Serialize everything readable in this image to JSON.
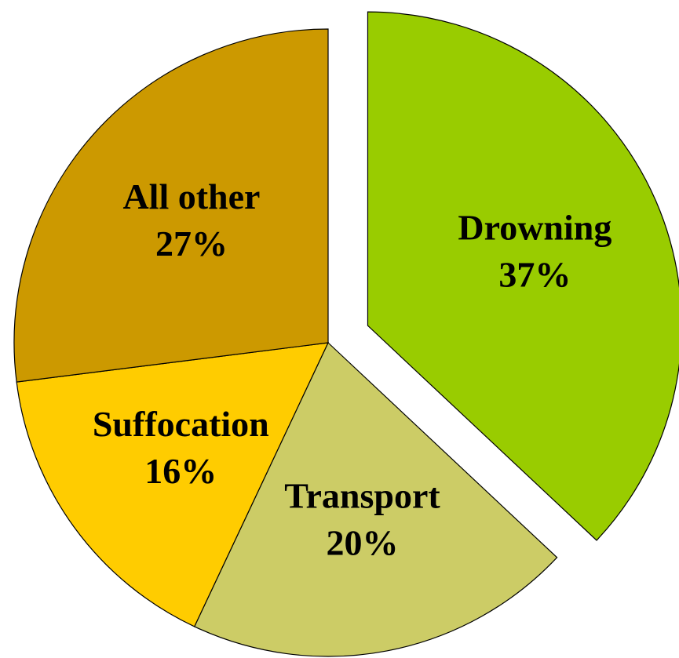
{
  "chart_data": {
    "type": "pie",
    "categories": [
      "Drowning",
      "Transport",
      "Suffocation",
      "All other"
    ],
    "values": [
      37,
      20,
      16,
      27
    ],
    "value_labels": [
      "37%",
      "20%",
      "16%",
      "27%"
    ],
    "colors": [
      "#99cc00",
      "#cccc66",
      "#ffcc00",
      "#cc9900"
    ],
    "explode": [
      true,
      false,
      false,
      false
    ]
  }
}
